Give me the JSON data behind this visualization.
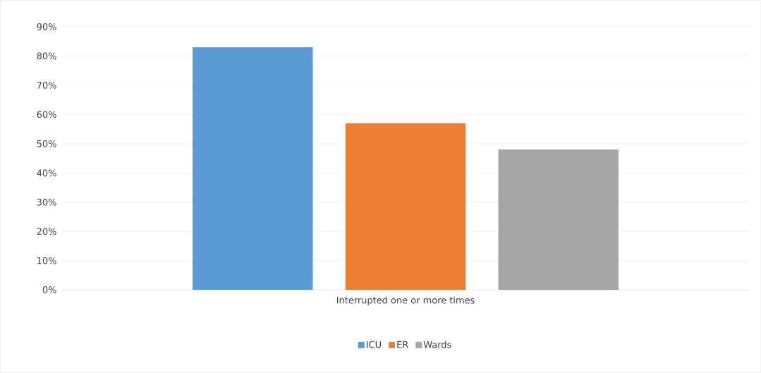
{
  "chart_data": {
    "type": "bar",
    "categories": [
      "Interrupted one or more times"
    ],
    "series": [
      {
        "name": "ICU",
        "color": "#5b9bd5",
        "values": [
          83
        ]
      },
      {
        "name": "ER",
        "color": "#ed7d31",
        "values": [
          57
        ]
      },
      {
        "name": "Wards",
        "color": "#a5a5a5",
        "values": [
          48
        ]
      }
    ],
    "ylim": [
      0,
      90
    ],
    "yticks": [
      {
        "value": 0,
        "label": "0%"
      },
      {
        "value": 10,
        "label": "10%"
      },
      {
        "value": 20,
        "label": "20%"
      },
      {
        "value": 30,
        "label": "30%"
      },
      {
        "value": 40,
        "label": "40%"
      },
      {
        "value": 50,
        "label": "50%"
      },
      {
        "value": 60,
        "label": "60%"
      },
      {
        "value": 70,
        "label": "70%"
      },
      {
        "value": 80,
        "label": "80%"
      },
      {
        "value": 90,
        "label": "90%"
      }
    ],
    "grid": "y",
    "legend": "bottom"
  }
}
